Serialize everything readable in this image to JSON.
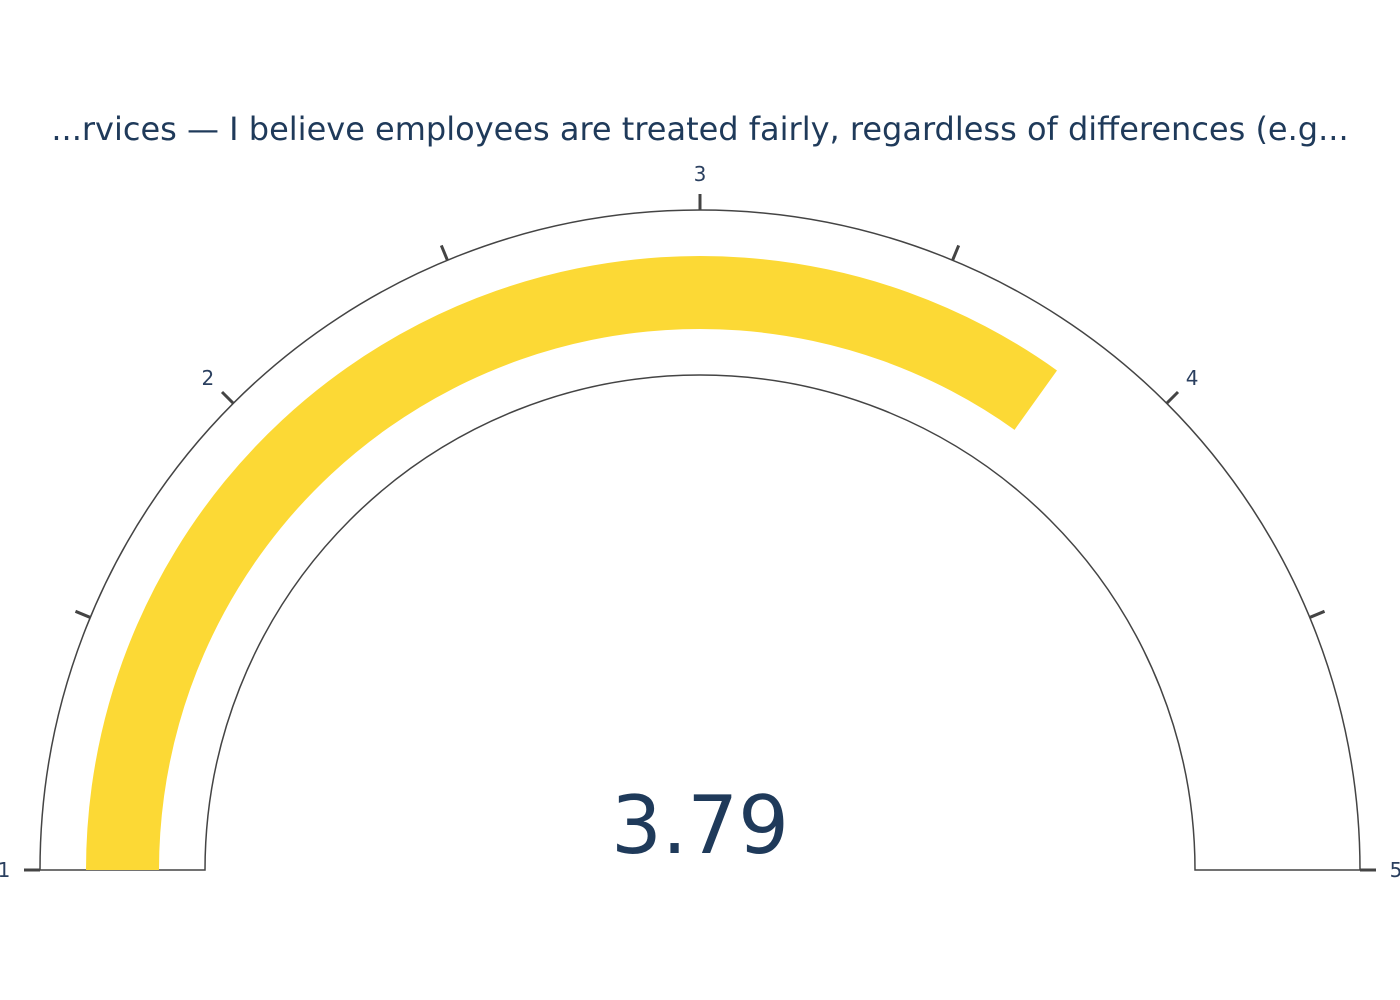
{
  "chart_data": {
    "type": "gauge",
    "title": "...rvices — I believe employees are treated fairly, regardless of differences (e.g...",
    "value": 3.79,
    "value_label": "3.79",
    "range": [
      1,
      5
    ],
    "tick_labels": [
      "1",
      "2",
      "3",
      "4",
      "5"
    ],
    "tick_values": [
      1,
      1.5,
      2,
      2.5,
      3,
      3.5,
      4,
      4.5,
      5
    ],
    "bar_color": "#FCD935",
    "outline_color": "#444444",
    "text_color": "#1f3a5a"
  }
}
